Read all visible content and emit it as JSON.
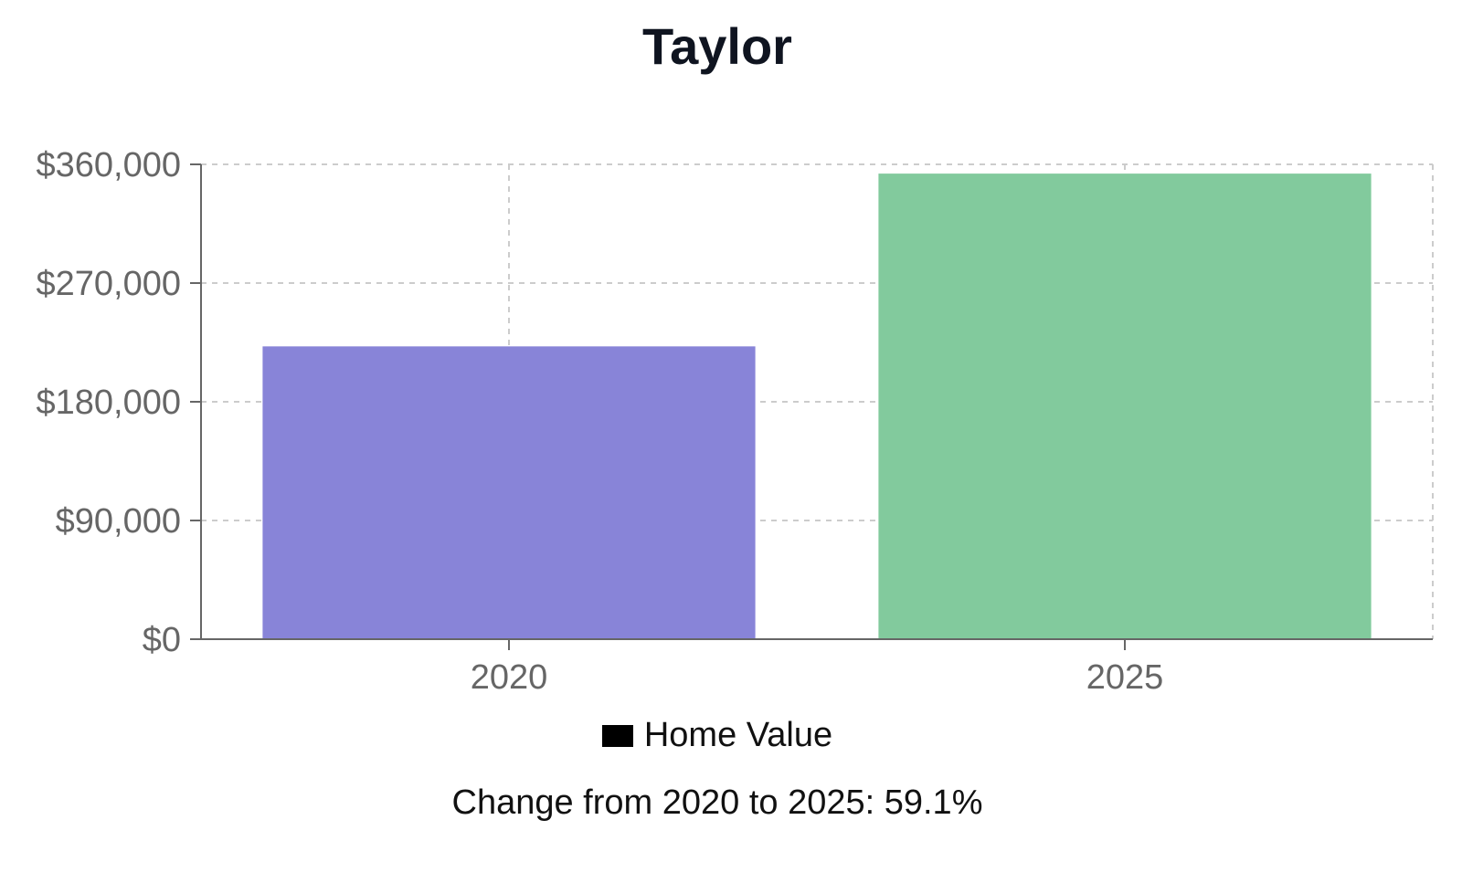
{
  "chart_data": {
    "type": "bar",
    "title": "Taylor",
    "categories": [
      "2020",
      "2025"
    ],
    "series": [
      {
        "name": "Home Value",
        "values": [
          222000,
          353000
        ]
      }
    ],
    "bar_colors": [
      "#8884d8",
      "#82ca9d"
    ],
    "ylim": [
      0,
      360000
    ],
    "y_ticks": [
      0,
      90000,
      180000,
      270000,
      360000
    ],
    "y_tick_labels": [
      "$0",
      "$90,000",
      "$180,000",
      "$270,000",
      "$360,000"
    ],
    "grid": true,
    "legend_position": "bottom",
    "legend_swatch_color": "#000000"
  },
  "footer": {
    "change_text": "Change from 2020 to 2025: 59.1%"
  }
}
